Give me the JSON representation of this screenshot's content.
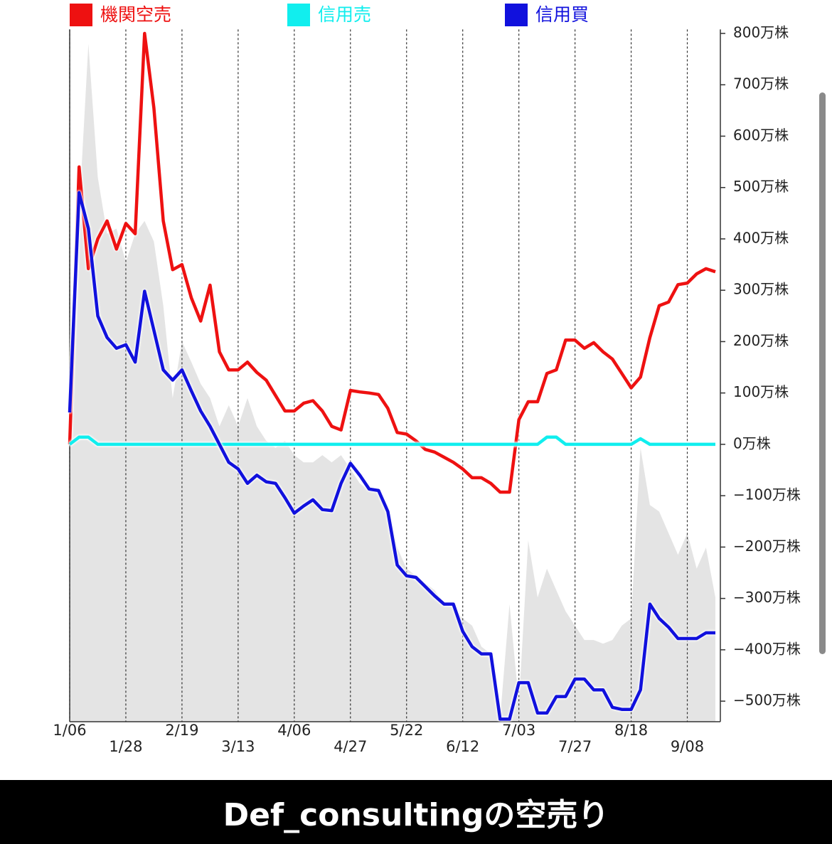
{
  "chart_data": {
    "type": "line",
    "title": "Def_consultingの空売り",
    "categories": [
      "1/06",
      null,
      null,
      null,
      null,
      null,
      "1/28",
      null,
      null,
      null,
      null,
      null,
      "2/19",
      null,
      null,
      null,
      null,
      null,
      "3/13",
      null,
      null,
      null,
      null,
      null,
      "4/06",
      null,
      null,
      null,
      null,
      null,
      "4/27",
      null,
      null,
      null,
      null,
      null,
      "5/22",
      null,
      null,
      null,
      null,
      null,
      "6/12",
      null,
      null,
      null,
      null,
      null,
      "7/03",
      null,
      null,
      null,
      null,
      null,
      "7/27",
      null,
      null,
      null,
      null,
      null,
      "8/18",
      null,
      null,
      null,
      null,
      null,
      "9/08",
      null,
      null,
      null
    ],
    "series": [
      {
        "name": "機関空売",
        "color": "#ee1111",
        "values": [
          0,
          540,
          342,
          400,
          435,
          380,
          430,
          410,
          800,
          655,
          435,
          340,
          350,
          285,
          240,
          310,
          180,
          145,
          145,
          160,
          140,
          125,
          95,
          65,
          65,
          80,
          85,
          65,
          35,
          28,
          105,
          102,
          100,
          97,
          70,
          23,
          20,
          7,
          -10,
          -15,
          -25,
          -35,
          -48,
          -65,
          -65,
          -76,
          -93,
          -93,
          48,
          83,
          83,
          138,
          145,
          203,
          203,
          187,
          198,
          180,
          166,
          138,
          110,
          131,
          208,
          270,
          277,
          311,
          314,
          332,
          342,
          336
        ]
      },
      {
        "name": "信用売",
        "color": "#11eeee",
        "values": [
          0,
          14,
          14,
          0,
          0,
          0,
          0,
          0,
          0,
          0,
          0,
          0,
          0,
          0,
          0,
          0,
          0,
          0,
          0,
          0,
          0,
          0,
          0,
          0,
          0,
          0,
          0,
          0,
          0,
          0,
          0,
          0,
          0,
          0,
          0,
          0,
          0,
          0,
          0,
          0,
          0,
          0,
          0,
          0,
          0,
          0,
          0,
          0,
          0,
          0,
          0,
          14,
          14,
          0,
          0,
          0,
          0,
          0,
          0,
          0,
          0,
          11,
          0,
          0,
          0,
          0,
          0,
          0,
          0,
          0
        ]
      },
      {
        "name": "信用買",
        "color": "#1111dd",
        "values": [
          62,
          490,
          420,
          250,
          208,
          187,
          194,
          160,
          298,
          222,
          145,
          125,
          145,
          104,
          65,
          35,
          0,
          -35,
          -48,
          -76,
          -60,
          -73,
          -76,
          -104,
          -134,
          -120,
          -108,
          -127,
          -129,
          -76,
          -37,
          -60,
          -87,
          -90,
          -131,
          -235,
          -256,
          -259,
          -277,
          -295,
          -311,
          -311,
          -364,
          -394,
          -408,
          -408,
          -535,
          -535,
          -464,
          -464,
          -523,
          -523,
          -491,
          -491,
          -457,
          -457,
          -478,
          -478,
          -512,
          -516,
          -516,
          -478,
          -311,
          -339,
          -356,
          -378,
          -378,
          -378,
          -367,
          -367
        ]
      }
    ],
    "area": {
      "color": "#e4e4e4",
      "values": [
        35,
        450,
        780,
        520,
        410,
        420,
        355,
        410,
        435,
        395,
        270,
        90,
        200,
        160,
        118,
        90,
        35,
        76,
        35,
        90,
        35,
        7,
        -7,
        7,
        -21,
        -35,
        -35,
        -21,
        -35,
        -21,
        -48,
        -76,
        -90,
        -90,
        -118,
        -201,
        -242,
        -256,
        -270,
        -284,
        -311,
        -318,
        -339,
        -353,
        -394,
        -408,
        -533,
        -311,
        -505,
        -187,
        -298,
        -242,
        -284,
        -325,
        -353,
        -381,
        -381,
        -388,
        -381,
        -353,
        -339,
        -7,
        -118,
        -131,
        -173,
        -215,
        -173,
        -242,
        -201,
        -298
      ]
    },
    "ylim": [
      -540,
      805
    ],
    "yticks": [
      {
        "value": 800,
        "label": "800万株"
      },
      {
        "value": 700,
        "label": "700万株"
      },
      {
        "value": 600,
        "label": "600万株"
      },
      {
        "value": 500,
        "label": "500万株"
      },
      {
        "value": 400,
        "label": "400万株"
      },
      {
        "value": 300,
        "label": "300万株"
      },
      {
        "value": 200,
        "label": "200万株"
      },
      {
        "value": 100,
        "label": "100万株"
      },
      {
        "value": 0,
        "label": "0万株"
      },
      {
        "value": -100,
        "label": "−100万株"
      },
      {
        "value": -200,
        "label": "−200万株"
      },
      {
        "value": -300,
        "label": "−300万株"
      },
      {
        "value": -400,
        "label": "−400万株"
      },
      {
        "value": -500,
        "label": "−500万株"
      }
    ],
    "legend": "top",
    "grid": "x"
  }
}
